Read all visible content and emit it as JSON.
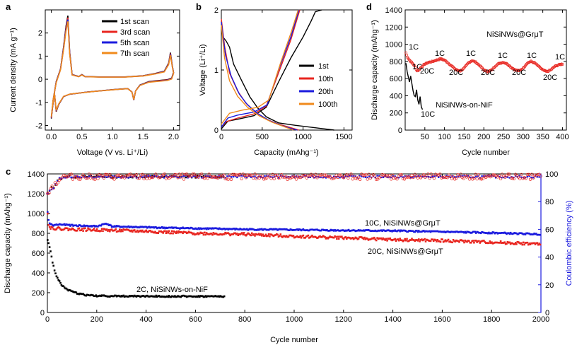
{
  "chart_data": [
    {
      "panel": "a",
      "type": "line",
      "xlabel": "Voltage (V vs. Li⁺/Li)",
      "ylabel": "Current density (mA g⁻¹)",
      "xlim": [
        -0.1,
        2.1
      ],
      "ylim": [
        -2.2,
        3.0
      ],
      "xticks": [
        "0.0",
        "0.5",
        "1.0",
        "1.5",
        "2.0"
      ],
      "yticks": [
        "-2",
        "-1",
        "0",
        "1",
        "2"
      ],
      "legend": "top-right",
      "series": [
        {
          "name": "1st scan",
          "color": "#000000",
          "variant": 0
        },
        {
          "name": "3rd scan",
          "color": "#e8251f",
          "variant": 1
        },
        {
          "name": "5th scan",
          "color": "#1b1bde",
          "variant": 2
        },
        {
          "name": "7th scan",
          "color": "#f08a1c",
          "variant": 3
        }
      ],
      "cv_shape": {
        "upper": [
          [
            0.0,
            -1.7
          ],
          [
            0.03,
            -0.9
          ],
          [
            0.08,
            -0.1
          ],
          [
            0.15,
            0.45
          ],
          [
            0.2,
            1.4
          ],
          [
            0.24,
            2.3
          ],
          [
            0.27,
            2.75
          ],
          [
            0.3,
            1.2
          ],
          [
            0.34,
            0.2
          ],
          [
            0.45,
            0.12
          ],
          [
            0.5,
            0.2
          ],
          [
            0.55,
            0.12
          ],
          [
            0.8,
            0.1
          ],
          [
            1.2,
            0.1
          ],
          [
            1.5,
            0.15
          ],
          [
            1.7,
            0.25
          ],
          [
            1.85,
            0.35
          ],
          [
            1.92,
            0.7
          ],
          [
            1.95,
            1.15
          ],
          [
            1.98,
            0.6
          ],
          [
            2.0,
            0.3
          ]
        ],
        "lower": [
          [
            2.0,
            0.3
          ],
          [
            1.97,
            0.05
          ],
          [
            1.9,
            -0.02
          ],
          [
            1.6,
            -0.1
          ],
          [
            1.45,
            -0.25
          ],
          [
            1.38,
            -0.5
          ],
          [
            1.35,
            -0.9
          ],
          [
            1.32,
            -0.55
          ],
          [
            1.25,
            -0.4
          ],
          [
            1.0,
            -0.45
          ],
          [
            0.6,
            -0.55
          ],
          [
            0.3,
            -0.65
          ],
          [
            0.2,
            -0.75
          ],
          [
            0.12,
            -1.1
          ],
          [
            0.08,
            -1.4
          ],
          [
            0.05,
            -0.6
          ],
          [
            0.02,
            -1.2
          ],
          [
            0.0,
            -1.7
          ]
        ]
      }
    },
    {
      "panel": "b",
      "type": "line",
      "xlabel": "Capacity (mAhg⁻¹)",
      "ylabel": "Voltage (Li⁺/Li)",
      "xlim": [
        0,
        1600
      ],
      "ylim": [
        0,
        2
      ],
      "xticks": [
        "0",
        "500",
        "1000",
        "1500"
      ],
      "yticks": [
        "0",
        "1",
        "2"
      ],
      "legend": "right",
      "series": [
        {
          "name": "1st",
          "color": "#000000",
          "discharge": [
            [
              0,
              1.72
            ],
            [
              20,
              1.55
            ],
            [
              60,
              1.48
            ],
            [
              100,
              1.38
            ],
            [
              150,
              1.1
            ],
            [
              250,
              0.82
            ],
            [
              350,
              0.55
            ],
            [
              450,
              0.36
            ],
            [
              550,
              0.22
            ],
            [
              700,
              0.12
            ],
            [
              900,
              0.08
            ],
            [
              1200,
              0.03
            ],
            [
              1380,
              0.0
            ]
          ],
          "charge": [
            [
              0,
              0.02
            ],
            [
              80,
              0.15
            ],
            [
              200,
              0.18
            ],
            [
              400,
              0.24
            ],
            [
              550,
              0.38
            ],
            [
              700,
              0.8
            ],
            [
              850,
              1.2
            ],
            [
              1000,
              1.55
            ],
            [
              1100,
              1.82
            ],
            [
              1150,
              1.97
            ],
            [
              1230,
              2.0
            ]
          ]
        },
        {
          "name": "10th",
          "color": "#e8251f",
          "discharge": [
            [
              0,
              1.85
            ],
            [
              40,
              1.4
            ],
            [
              100,
              0.95
            ],
            [
              200,
              0.65
            ],
            [
              300,
              0.45
            ],
            [
              420,
              0.3
            ],
            [
              550,
              0.18
            ],
            [
              700,
              0.1
            ],
            [
              850,
              0.04
            ],
            [
              950,
              0.0
            ]
          ],
          "charge": [
            [
              0,
              0.05
            ],
            [
              60,
              0.14
            ],
            [
              200,
              0.2
            ],
            [
              400,
              0.27
            ],
            [
              550,
              0.4
            ],
            [
              700,
              0.95
            ],
            [
              850,
              1.5
            ],
            [
              960,
              2.0
            ]
          ]
        },
        {
          "name": "20th",
          "color": "#1b1bde",
          "discharge": [
            [
              0,
              1.8
            ],
            [
              50,
              1.25
            ],
            [
              120,
              0.9
            ],
            [
              220,
              0.6
            ],
            [
              320,
              0.42
            ],
            [
              450,
              0.27
            ],
            [
              600,
              0.15
            ],
            [
              750,
              0.07
            ],
            [
              870,
              0.02
            ],
            [
              930,
              0.0
            ]
          ],
          "charge": [
            [
              0,
              0.05
            ],
            [
              80,
              0.2
            ],
            [
              200,
              0.25
            ],
            [
              400,
              0.3
            ],
            [
              560,
              0.42
            ],
            [
              700,
              1.0
            ],
            [
              850,
              1.55
            ],
            [
              950,
              2.0
            ]
          ]
        },
        {
          "name": "100th",
          "color": "#f08a1c",
          "discharge": [
            [
              0,
              1.75
            ],
            [
              40,
              1.2
            ],
            [
              100,
              0.82
            ],
            [
              200,
              0.56
            ],
            [
              320,
              0.38
            ],
            [
              460,
              0.24
            ],
            [
              620,
              0.13
            ],
            [
              760,
              0.06
            ],
            [
              880,
              0.0
            ]
          ],
          "charge": [
            [
              0,
              0.1
            ],
            [
              100,
              0.28
            ],
            [
              250,
              0.33
            ],
            [
              450,
              0.38
            ],
            [
              580,
              0.5
            ],
            [
              720,
              1.1
            ],
            [
              860,
              1.65
            ],
            [
              940,
              2.0
            ]
          ]
        }
      ]
    },
    {
      "panel": "d",
      "type": "line",
      "xlabel": "Cycle number",
      "ylabel": "Discharge capacity (mAhg⁻¹)",
      "xlim": [
        0,
        410
      ],
      "ylim": [
        0,
        1400
      ],
      "xticks": [
        "50",
        "100",
        "150",
        "200",
        "250",
        "300",
        "350",
        "400"
      ],
      "yticks": [
        "0",
        "200",
        "400",
        "600",
        "800",
        "1000",
        "1200",
        "1400"
      ],
      "series": [
        {
          "name": "NiSiNWs@GrμT",
          "color": "#e8251f",
          "points": [
            [
              2,
              900
            ],
            [
              5,
              860
            ],
            [
              10,
              820
            ],
            [
              15,
              795
            ],
            [
              20,
              770
            ],
            [
              25,
              740
            ],
            [
              30,
              690
            ],
            [
              35,
              700
            ],
            [
              40,
              730
            ],
            [
              50,
              770
            ],
            [
              60,
              790
            ],
            [
              70,
              800
            ],
            [
              80,
              815
            ],
            [
              90,
              830
            ],
            [
              100,
              815
            ],
            [
              110,
              780
            ],
            [
              120,
              740
            ],
            [
              130,
              700
            ],
            [
              140,
              690
            ],
            [
              150,
              720
            ],
            [
              160,
              780
            ],
            [
              170,
              810
            ],
            [
              180,
              790
            ],
            [
              190,
              750
            ],
            [
              200,
              700
            ],
            [
              210,
              680
            ],
            [
              220,
              700
            ],
            [
              230,
              750
            ],
            [
              240,
              780
            ],
            [
              250,
              790
            ],
            [
              260,
              770
            ],
            [
              270,
              730
            ],
            [
              280,
              700
            ],
            [
              290,
              690
            ],
            [
              300,
              720
            ],
            [
              310,
              780
            ],
            [
              320,
              800
            ],
            [
              330,
              780
            ],
            [
              340,
              740
            ],
            [
              350,
              700
            ],
            [
              360,
              680
            ],
            [
              370,
              700
            ],
            [
              380,
              740
            ],
            [
              390,
              760
            ],
            [
              400,
              770
            ]
          ]
        },
        {
          "name": "NiSiNWs-on-NiF",
          "color": "#000000",
          "points": [
            [
              2,
              780
            ],
            [
              5,
              680
            ],
            [
              8,
              620
            ],
            [
              11,
              560
            ],
            [
              14,
              630
            ],
            [
              17,
              540
            ],
            [
              20,
              460
            ],
            [
              23,
              400
            ],
            [
              26,
              390
            ],
            [
              29,
              470
            ],
            [
              32,
              350
            ],
            [
              35,
              300
            ],
            [
              38,
              390
            ],
            [
              41,
              270
            ],
            [
              44,
              240
            ]
          ]
        }
      ],
      "annotations": [
        "1C",
        "20C",
        "1C",
        "20C",
        "1C",
        "20C",
        "1C",
        "20C",
        "1C",
        "20C",
        "1C",
        "10C",
        "1C"
      ],
      "legend_labels": [
        "NiSiNWs@GrμT",
        "NiSiNWs-on-NiF"
      ]
    },
    {
      "panel": "c",
      "type": "scatter",
      "xlabel": "Cycle number",
      "ylabel": "Discharge capacity (mAhg⁻¹)",
      "y2label": "Coulombic efficiency (%)",
      "xlim": [
        0,
        2000
      ],
      "ylim": [
        0,
        1400
      ],
      "y2lim": [
        0,
        100
      ],
      "xticks": [
        "0",
        "200",
        "400",
        "600",
        "800",
        "1000",
        "1200",
        "1400",
        "1600",
        "1800",
        "2000"
      ],
      "yticks": [
        "0",
        "200",
        "400",
        "600",
        "800",
        "1000",
        "1200",
        "1400"
      ],
      "y2ticks": [
        "0",
        "20",
        "40",
        "60",
        "80",
        "100"
      ],
      "series": [
        {
          "name": "10C, NiSiNWs@GrμT",
          "color": "#1b1bde",
          "points": [
            [
              1,
              1020
            ],
            [
              5,
              930
            ],
            [
              10,
              900
            ],
            [
              20,
              880
            ],
            [
              50,
              890
            ],
            [
              100,
              880
            ],
            [
              200,
              870
            ],
            [
              240,
              900
            ],
            [
              260,
              870
            ],
            [
              400,
              860
            ],
            [
              600,
              850
            ],
            [
              800,
              840
            ],
            [
              1000,
              835
            ],
            [
              1200,
              830
            ],
            [
              1400,
              825
            ],
            [
              1600,
              815
            ],
            [
              1800,
              805
            ],
            [
              2000,
              790
            ]
          ]
        },
        {
          "name": "20C, NiSiNWs@GrμT",
          "color": "#e8251f",
          "points": [
            [
              1,
              1000
            ],
            [
              5,
              880
            ],
            [
              10,
              860
            ],
            [
              30,
              850
            ],
            [
              100,
              840
            ],
            [
              200,
              835
            ],
            [
              400,
              820
            ],
            [
              600,
              800
            ],
            [
              800,
              790
            ],
            [
              1000,
              770
            ],
            [
              1200,
              755
            ],
            [
              1400,
              735
            ],
            [
              1600,
              725
            ],
            [
              1800,
              710
            ],
            [
              2000,
              690
            ]
          ]
        },
        {
          "name": "2C, NiSiNWs-on-NiF",
          "color": "#000000",
          "points": [
            [
              1,
              730
            ],
            [
              10,
              650
            ],
            [
              20,
              520
            ],
            [
              30,
              420
            ],
            [
              40,
              350
            ],
            [
              55,
              290
            ],
            [
              70,
              250
            ],
            [
              90,
              220
            ],
            [
              120,
              195
            ],
            [
              160,
              175
            ],
            [
              200,
              168
            ],
            [
              300,
              165
            ],
            [
              500,
              163
            ],
            [
              720,
              162
            ]
          ]
        }
      ],
      "ce_series": [
        {
          "name": "CE 2C NiSiNWs-on-NiF",
          "color": "#000000",
          "range": [
            1,
            720
          ]
        },
        {
          "name": "CE 10C NiSiNWs@GrμT",
          "color": "#1b1bde",
          "range": [
            1,
            2000
          ]
        },
        {
          "name": "CE 20C NiSiNWs@GrμT",
          "color": "#e8251f",
          "range": [
            1,
            2000
          ]
        }
      ],
      "ce_level": 98
    }
  ],
  "panels": {
    "a": {
      "letter": "a",
      "xlabel": "Voltage (V vs. Li⁺/Li)",
      "ylabel": "Current density (mA g⁻¹)"
    },
    "b": {
      "letter": "b",
      "xlabel": "Capacity (mAhg⁻¹)",
      "ylabel": "Voltage (Li⁺/Li)"
    },
    "c": {
      "letter": "c",
      "xlabel": "Cycle number",
      "ylabel": "Discharge capacity (mAhg⁻¹)",
      "y2label": "Coulombic efficiency (%)"
    },
    "d": {
      "letter": "d",
      "xlabel": "Cycle number",
      "ylabel": "Discharge capacity (mAhg⁻¹)"
    }
  },
  "colors": {
    "black": "#000000",
    "red": "#e8251f",
    "blue": "#1b1bde",
    "orange": "#f08a1c"
  }
}
